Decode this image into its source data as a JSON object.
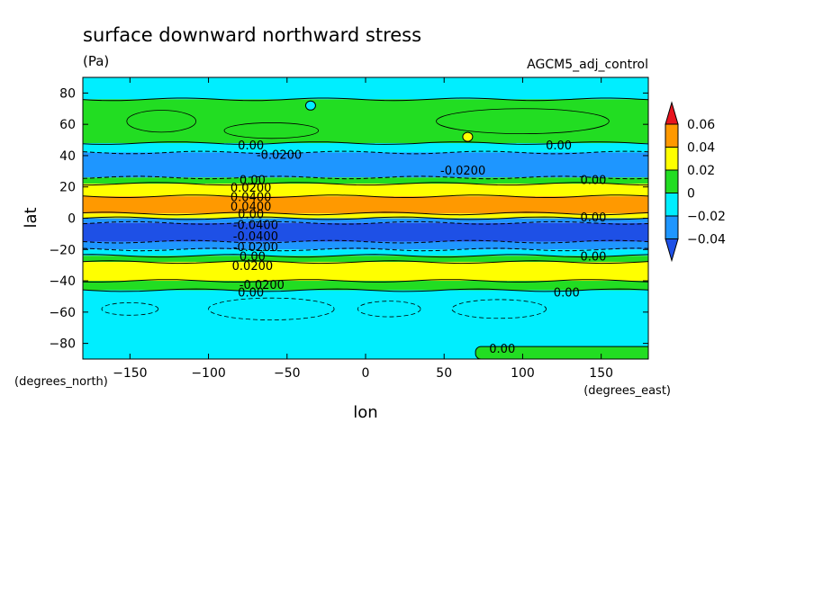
{
  "chart_data": {
    "type": "heatmap",
    "title": "surface downward northward stress",
    "units": "(Pa)",
    "dataset": "AGCM5_adj_control",
    "xlabel": "lon",
    "ylabel": "lat",
    "x_units": "(degrees_east)",
    "y_units": "(degrees_north)",
    "xlim": [
      -180,
      180
    ],
    "ylim": [
      -90,
      90
    ],
    "x_ticks": [
      -150,
      -100,
      -50,
      0,
      50,
      100,
      150
    ],
    "y_ticks": [
      -80,
      -60,
      -40,
      -20,
      0,
      20,
      40,
      60,
      80
    ],
    "grid": false,
    "colorbar": {
      "labels": [
        "0.06",
        "0.04",
        "0.02",
        "0",
        "−0.02",
        "−0.04"
      ],
      "bins": [
        {
          "min": 0.06,
          "max": null,
          "color": "#e8141e"
        },
        {
          "min": 0.04,
          "max": 0.06,
          "color": "#ff9900"
        },
        {
          "min": 0.02,
          "max": 0.04,
          "color": "#ffff00"
        },
        {
          "min": 0.0,
          "max": 0.02,
          "color": "#22dd22"
        },
        {
          "min": -0.02,
          "max": 0.0,
          "color": "#00eeff"
        },
        {
          "min": -0.04,
          "max": -0.02,
          "color": "#1e96ff"
        },
        {
          "min": null,
          "max": -0.04,
          "color": "#1e50e6"
        }
      ]
    },
    "zonal_bands": [
      {
        "lat_min": 76,
        "lat_max": 90,
        "level": "-0.02..0"
      },
      {
        "lat_min": 48,
        "lat_max": 76,
        "level": "0..0.02"
      },
      {
        "lat_min": 42,
        "lat_max": 48,
        "level": "-0.02..0"
      },
      {
        "lat_min": 26,
        "lat_max": 42,
        "level": "-0.04..-0.02"
      },
      {
        "lat_min": 22,
        "lat_max": 26,
        "level": "0..0.02"
      },
      {
        "lat_min": 14,
        "lat_max": 22,
        "level": "0.02..0.04"
      },
      {
        "lat_min": 3,
        "lat_max": 14,
        "level": "0.04..0.06"
      },
      {
        "lat_min": 0,
        "lat_max": 3,
        "level": "0.02..0.04"
      },
      {
        "lat_min": -3,
        "lat_max": 0,
        "level": "-0.04..-0.02"
      },
      {
        "lat_min": -15,
        "lat_max": -3,
        "level": "<-0.04"
      },
      {
        "lat_min": -20,
        "lat_max": -15,
        "level": "-0.04..-0.02"
      },
      {
        "lat_min": -24,
        "lat_max": -20,
        "level": "-0.02..0"
      },
      {
        "lat_min": -28,
        "lat_max": -24,
        "level": "0..0.02"
      },
      {
        "lat_min": -40,
        "lat_max": -28,
        "level": "0.02..0.04"
      },
      {
        "lat_min": -46,
        "lat_max": -40,
        "level": "0..0.02"
      },
      {
        "lat_min": -90,
        "lat_max": -46,
        "level": "-0.02..0"
      }
    ],
    "features": [
      {
        "lon": 65,
        "lat": 52,
        "level": "0.02..0.04"
      },
      {
        "lon": -35,
        "lat": 72,
        "level": "-0.02..0"
      },
      {
        "lon": 140,
        "lat": -85,
        "level": "0..0.02"
      }
    ],
    "contour_labels": [
      {
        "text": "0.00",
        "lon": -73,
        "lat": 46
      },
      {
        "text": "-0.0200",
        "lon": -55,
        "lat": 40
      },
      {
        "text": "0.00",
        "lon": 123,
        "lat": 46
      },
      {
        "text": "-0.0200",
        "lon": 62,
        "lat": 30
      },
      {
        "text": "0.00",
        "lon": 145,
        "lat": 24
      },
      {
        "text": "0.00",
        "lon": -72,
        "lat": 24
      },
      {
        "text": "0.0200",
        "lon": -73,
        "lat": 19
      },
      {
        "text": "0.0400",
        "lon": -73,
        "lat": 13
      },
      {
        "text": "0.0400",
        "lon": -73,
        "lat": 7
      },
      {
        "text": "0.00",
        "lon": -73,
        "lat": 2
      },
      {
        "text": "-0.0400",
        "lon": -70,
        "lat": -5
      },
      {
        "text": "-0.0400",
        "lon": -70,
        "lat": -12
      },
      {
        "text": "-0.0200",
        "lon": -70,
        "lat": -19
      },
      {
        "text": "0.00",
        "lon": -72,
        "lat": -25
      },
      {
        "text": "0.0200",
        "lon": -72,
        "lat": -31
      },
      {
        "text": "0.00",
        "lon": 145,
        "lat": 0
      },
      {
        "text": "0.00",
        "lon": 145,
        "lat": -25
      },
      {
        "text": "-0.0200",
        "lon": -66,
        "lat": -43
      },
      {
        "text": "0.00",
        "lon": -73,
        "lat": -48
      },
      {
        "text": "0.00",
        "lon": 128,
        "lat": -48
      },
      {
        "text": "0.00",
        "lon": 87,
        "lat": -84
      }
    ]
  }
}
